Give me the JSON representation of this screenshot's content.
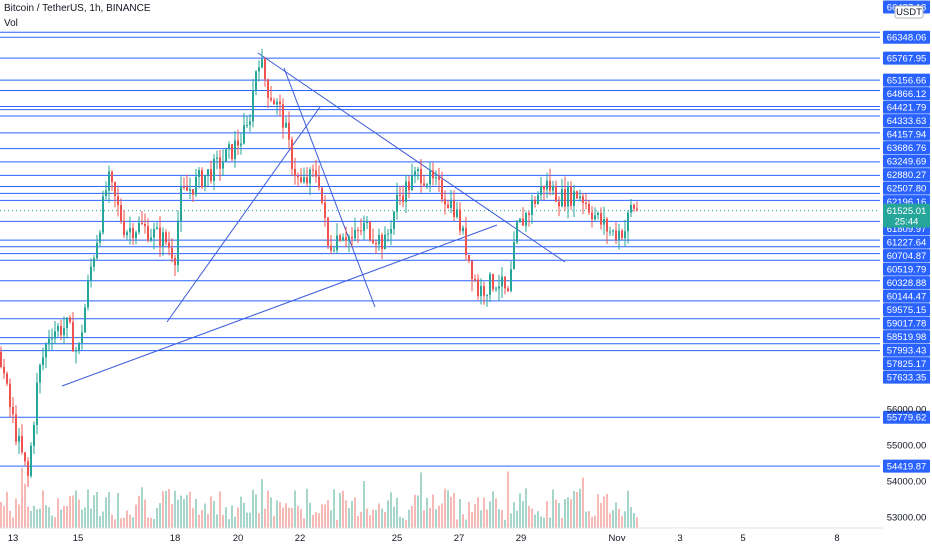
{
  "header": {
    "symbol": "Bitcoin / TetherUS, 1h, BINANCE",
    "indicator": "Vol"
  },
  "currency_badge": "USDT",
  "colors": {
    "level_line": "#2962ff",
    "trend_line": "#3b5bdb",
    "candle_up": "#26a69a",
    "candle_down": "#ef5350",
    "vol_up": "#a5d6c9",
    "vol_down": "#f7b9b6",
    "axis_label_bg": "#2962ff",
    "current_price_bg": "#26a69a",
    "grid_text": "#131722"
  },
  "chart_data": {
    "type": "candlestick",
    "symbol": "Bitcoin / TetherUS",
    "timeframe": "1h",
    "exchange": "BINANCE",
    "x_tick_labels": [
      "13",
      "15",
      "18",
      "20",
      "22",
      "25",
      "27",
      "29",
      "Nov",
      "3",
      "5",
      "8"
    ],
    "y_axis_plain_labels": [
      "56000.00",
      "55000.00",
      "54000.00",
      "53000.00"
    ],
    "horizontal_levels": [
      66487.18,
      66348.06,
      65767.95,
      65156.66,
      64866.12,
      64421.79,
      64333.63,
      64157.94,
      63686.76,
      63249.69,
      62880.27,
      62507.8,
      62196.16,
      62004.61,
      61809.97,
      61227.64,
      60704.87,
      60519.79,
      60328.88,
      60144.47,
      59575.15,
      59017.78,
      58519.98,
      57993.43,
      57825.17,
      57633.35,
      55779.62,
      54419.87
    ],
    "level_labels": [
      "66487.18",
      "66348.06",
      "65767.95",
      "65156.66",
      "64866.12",
      "64421.79",
      "64333.63",
      "64157.94",
      "63686.76",
      "63249.69",
      "62880.27",
      "62507.80",
      "62196.16",
      "62004.61",
      "61809.97",
      "61227.64",
      "60704.87",
      "60519.79",
      "60328.88",
      "60144.47",
      "59575.15",
      "59017.78",
      "58519.98",
      "57993.43",
      "57825.17",
      "57633.35",
      "55779.62",
      "54419.87"
    ],
    "current_price": "61525.01",
    "countdown": "25:44",
    "y_range": [
      52700,
      67300
    ]
  }
}
